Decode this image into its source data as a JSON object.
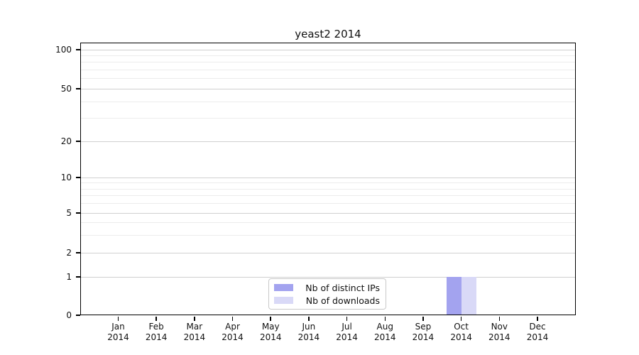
{
  "chart_data": {
    "type": "bar",
    "title": "yeast2 2014",
    "categories": [
      "Jan 2014",
      "Feb 2014",
      "Mar 2014",
      "Apr 2014",
      "May 2014",
      "Jun 2014",
      "Jul 2014",
      "Aug 2014",
      "Sep 2014",
      "Oct 2014",
      "Nov 2014",
      "Dec 2014"
    ],
    "series": [
      {
        "name": "Nb of distinct IPs",
        "color": "#a3a3ef",
        "values": [
          0,
          0,
          0,
          0,
          0,
          0,
          0,
          0,
          0,
          1,
          0,
          0
        ]
      },
      {
        "name": "Nb of downloads",
        "color": "#d9d9f7",
        "values": [
          0,
          0,
          0,
          0,
          0,
          0,
          0,
          0,
          0,
          1,
          0,
          0
        ]
      }
    ],
    "xlabel": "",
    "ylabel": "",
    "yscale": "symlog",
    "ylim": [
      0,
      140
    ],
    "yticks_major": [
      0,
      1,
      2,
      5,
      10,
      20,
      50,
      100
    ],
    "ytick_labels": [
      "0",
      "1",
      "2",
      "5",
      "10",
      "20",
      "50",
      "100"
    ],
    "yticks_minor": [
      3,
      4,
      6,
      7,
      8,
      9,
      30,
      40,
      60,
      70,
      80,
      90
    ],
    "grid": "horizontal, major and minor",
    "legend_position": "lower center inside plot"
  },
  "colors": {
    "grid_major": "#d0d0d0",
    "grid_minor": "#ececec",
    "axis": "#000000",
    "background": "#ffffff",
    "legend_border": "#c9c9c9"
  }
}
